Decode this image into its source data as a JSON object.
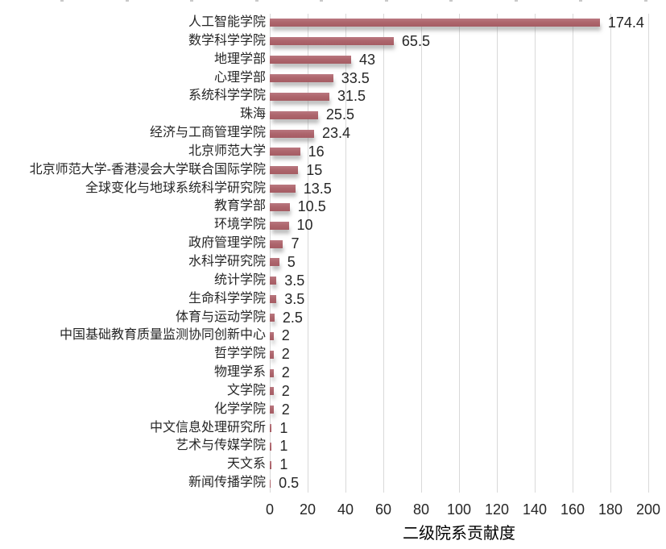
{
  "chart_data": {
    "type": "bar",
    "orientation": "horizontal",
    "title": "",
    "xlabel": "二级院系贡献度",
    "ylabel": "",
    "categories": [
      "人工智能学院",
      "数学科学学院",
      "地理学部",
      "心理学部",
      "系统科学学院",
      "珠海",
      "经济与工商管理学院",
      "北京师范大学",
      "北京师范大学-香港浸会大学联合国际学院",
      "全球变化与地球系统科学研究院",
      "教育学部",
      "环境学院",
      "政府管理学院",
      "水科学研究院",
      "统计学院",
      "生命科学学院",
      "体育与运动学院",
      "中国基础教育质量监测协同创新中心",
      "哲学学院",
      "物理学系",
      "文学院",
      "化学学院",
      "中文信息处理研究所",
      "艺术与传媒学院",
      "天文系",
      "新闻传播学院"
    ],
    "values": [
      174.4,
      65.5,
      43,
      33.5,
      31.5,
      25.5,
      23.4,
      16,
      15,
      13.5,
      10.5,
      10,
      7,
      5,
      3.5,
      3.5,
      2.5,
      2,
      2,
      2,
      2,
      2,
      1,
      1,
      1,
      0.5
    ],
    "value_labels": [
      "174.4",
      "65.5",
      "43",
      "33.5",
      "31.5",
      "25.5",
      "23.4",
      "16",
      "15",
      "13.5",
      "10.5",
      "10",
      "7",
      "5",
      "3.5",
      "3.5",
      "2.5",
      "2",
      "2",
      "2",
      "2",
      "2",
      "1",
      "1",
      "1",
      "0.5"
    ],
    "x_ticks": [
      0,
      20,
      40,
      60,
      80,
      100,
      120,
      140,
      160,
      180,
      200
    ],
    "xlim": [
      0,
      200
    ],
    "grid": true,
    "legend": false,
    "bar_color": "#AE666D",
    "bar_color_top": "#B97880",
    "bar_color_bottom": "#A55C63",
    "gridline_color": "#D9D9D9",
    "text_color": "#262626"
  }
}
